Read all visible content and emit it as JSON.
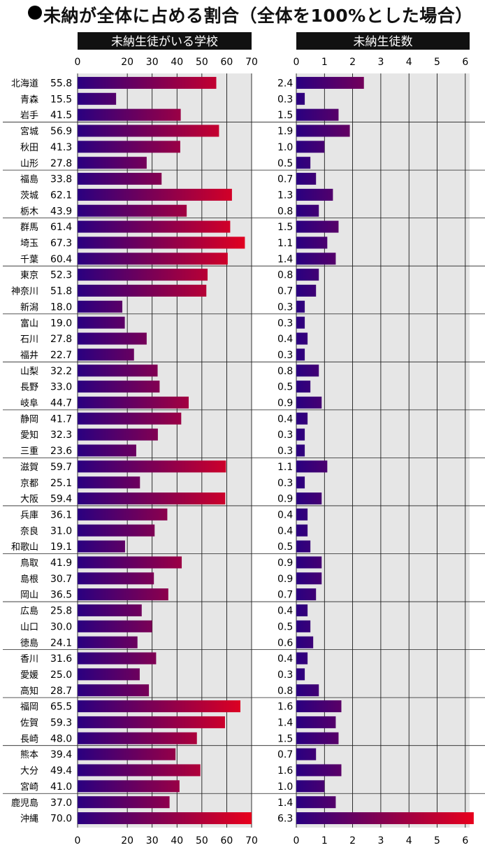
{
  "title": "未納が全体に占める割合（全体を100%とした場合）",
  "chart_data": [
    {
      "type": "bar",
      "orientation": "horizontal",
      "title": "未納生徒がいる学校",
      "xlim": [
        0,
        70
      ],
      "xticks": [
        0,
        20,
        30,
        40,
        50,
        60,
        70
      ],
      "grid": true,
      "categories": [
        "北海道",
        "青森",
        "岩手",
        "宮城",
        "秋田",
        "山形",
        "福島",
        "茨城",
        "栃木",
        "群馬",
        "埼玉",
        "千葉",
        "東京",
        "神奈川",
        "新潟",
        "富山",
        "石川",
        "福井",
        "山梨",
        "長野",
        "岐阜",
        "静岡",
        "愛知",
        "三重",
        "滋賀",
        "京都",
        "大阪",
        "兵庫",
        "奈良",
        "和歌山",
        "鳥取",
        "島根",
        "岡山",
        "広島",
        "山口",
        "徳島",
        "香川",
        "愛媛",
        "高知",
        "福岡",
        "佐賀",
        "長崎",
        "熊本",
        "大分",
        "宮崎",
        "鹿児島",
        "沖縄"
      ],
      "values": [
        55.8,
        15.5,
        41.5,
        56.9,
        41.3,
        27.8,
        33.8,
        62.1,
        43.9,
        61.4,
        67.3,
        60.4,
        52.3,
        51.8,
        18.0,
        19.0,
        27.8,
        22.7,
        32.2,
        33.0,
        44.7,
        41.7,
        32.3,
        23.6,
        59.7,
        25.1,
        59.4,
        36.1,
        31.0,
        19.1,
        41.9,
        30.7,
        36.5,
        25.8,
        30.0,
        24.1,
        31.6,
        25.0,
        28.7,
        65.5,
        59.3,
        48.0,
        39.4,
        49.4,
        41.0,
        37.0,
        70.0
      ],
      "labels": [
        "55.8",
        "15.5",
        "41.5",
        "56.9",
        "41.3",
        "27.8",
        "33.8",
        "62.1",
        "43.9",
        "61.4",
        "67.3",
        "60.4",
        "52.3",
        "51.8",
        "18.0",
        "19.0",
        "27.8",
        "22.7",
        "32.2",
        "33.0",
        "44.7",
        "41.7",
        "32.3",
        "23.6",
        "59.7",
        "25.1",
        "59.4",
        "36.1",
        "31.0",
        "19.1",
        "41.9",
        "30.7",
        "36.5",
        "25.8",
        "30.0",
        "24.1",
        "31.6",
        "25.0",
        "28.7",
        "65.5",
        "59.3",
        "48.0",
        "39.4",
        "49.4",
        "41.0",
        "37.0",
        "70.0"
      ],
      "groups": [
        3,
        3,
        3,
        3,
        3,
        3,
        3,
        3,
        3,
        3,
        3,
        3,
        3,
        3,
        3,
        2
      ]
    },
    {
      "type": "bar",
      "orientation": "horizontal",
      "title": "未納生徒数",
      "xlim": [
        0,
        6.3
      ],
      "xticks": [
        0,
        1,
        2,
        3,
        4,
        5,
        6
      ],
      "grid": true,
      "values": [
        2.4,
        0.3,
        1.5,
        1.9,
        1.0,
        0.5,
        0.7,
        1.3,
        0.8,
        1.5,
        1.1,
        1.4,
        0.8,
        0.7,
        0.3,
        0.3,
        0.4,
        0.3,
        0.8,
        0.5,
        0.9,
        0.4,
        0.3,
        0.3,
        1.1,
        0.3,
        0.9,
        0.4,
        0.4,
        0.5,
        0.9,
        0.9,
        0.7,
        0.4,
        0.5,
        0.6,
        0.4,
        0.3,
        0.8,
        1.6,
        1.4,
        1.5,
        0.7,
        1.6,
        1.0,
        1.4,
        6.3
      ],
      "labels": [
        "2.4",
        "0.3",
        "1.5",
        "1.9",
        "1.0",
        "0.5",
        "0.7",
        "1.3",
        "0.8",
        "1.5",
        "1.1",
        "1.4",
        "0.8",
        "0.7",
        "0.3",
        "0.3",
        "0.4",
        "0.3",
        "0.8",
        "0.5",
        "0.9",
        "0.4",
        "0.3",
        "0.3",
        "1.1",
        "0.3",
        "0.9",
        "0.4",
        "0.4",
        "0.5",
        "0.9",
        "0.9",
        "0.7",
        "0.4",
        "0.5",
        "0.6",
        "0.4",
        "0.3",
        "0.8",
        "1.6",
        "1.4",
        "1.5",
        "0.7",
        "1.6",
        "1.0",
        "1.4",
        "6.3"
      ]
    }
  ],
  "colors": {
    "bar_start": "#2a0080",
    "bar_end": "#e8001c",
    "panel_bg": "#e6e6e6",
    "header_bg": "#111111"
  }
}
